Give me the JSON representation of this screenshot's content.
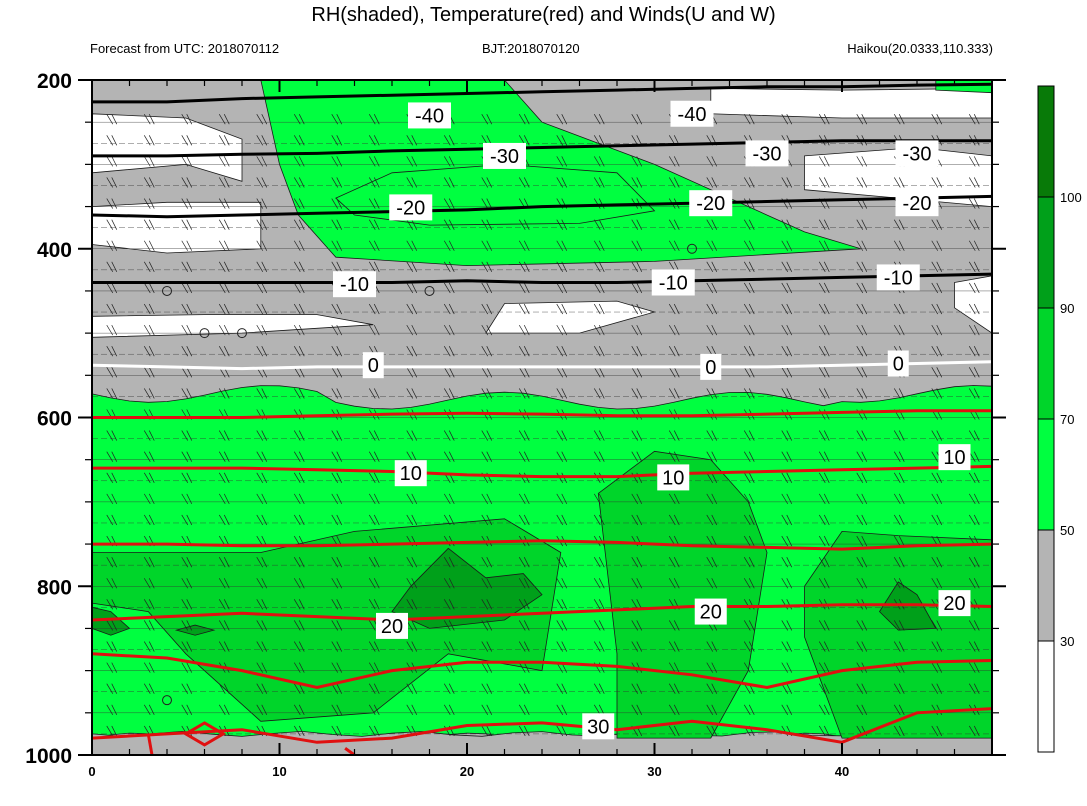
{
  "title": "RH(shaded), Temperature(red) and Winds(U and W)",
  "subtitle_left": "Forecast from UTC: 2018070112",
  "subtitle_center": "BJT:2018070120",
  "subtitle_right": "Haikou(20.0333,110.333)",
  "colors": {
    "rh_lt30": "#ffffff",
    "rh_30_50": "#b4b4b4",
    "rh_50_70": "#00ff40",
    "rh_70_90": "#00d52a",
    "rh_90_100": "#00a01a",
    "rh_gt100": "#087a08",
    "temperature_line": "#e01010",
    "zero_isotherm": "#ffffff",
    "negative_isotherm": "#000000",
    "contour_line": "#1a1a1a"
  },
  "chart_data": {
    "type": "heatmap",
    "x_ticks": [
      0,
      10,
      20,
      30,
      40
    ],
    "xlim": [
      0,
      48
    ],
    "y_ticks": [
      200,
      400,
      600,
      800,
      1000
    ],
    "ylim": [
      1000,
      200
    ],
    "y_reversed": true,
    "colorbar": {
      "levels": [
        30,
        50,
        70,
        90,
        100
      ],
      "level_labels": [
        "30",
        "50",
        "70",
        "90",
        "100"
      ],
      "colors": [
        "#ffffff",
        "#b4b4b4",
        "#00ff40",
        "#00d52a",
        "#00a01a",
        "#087a08"
      ]
    },
    "rh_layers": [
      {
        "p_top": 200,
        "p_bot": 515,
        "class": "30-50 with dry pockets <30"
      },
      {
        "p_top": 515,
        "p_bot": 575,
        "class": "30-50"
      },
      {
        "p_top": 575,
        "p_bot": 980,
        "class": "50-90 with pockets >90"
      },
      {
        "p_top": 980,
        "p_bot": 1000,
        "class": "30-50"
      }
    ],
    "temperature_contours": [
      {
        "level": -40,
        "label": "-40",
        "color": "black",
        "pressure": [
          226,
          226,
          222,
          220,
          218,
          216,
          214,
          212,
          210,
          208,
          208,
          206,
          205
        ]
      },
      {
        "level": -30,
        "label": "-30",
        "color": "black",
        "pressure": [
          290,
          290,
          288,
          287,
          284,
          282,
          280,
          278,
          276,
          274,
          272,
          272,
          272
        ]
      },
      {
        "level": -20,
        "label": "-20",
        "color": "black",
        "pressure": [
          360,
          362,
          360,
          358,
          356,
          354,
          350,
          348,
          346,
          344,
          342,
          340,
          338
        ]
      },
      {
        "level": -10,
        "label": "-10",
        "color": "black",
        "pressure": [
          440,
          440,
          440,
          440,
          440,
          438,
          440,
          440,
          438,
          436,
          434,
          432,
          430
        ]
      },
      {
        "level": 0,
        "label": "0",
        "color": "white",
        "pressure": [
          538,
          540,
          542,
          540,
          540,
          540,
          540,
          540,
          540,
          540,
          538,
          536,
          534
        ]
      },
      {
        "level": 5,
        "label": "",
        "color": "red",
        "pressure": [
          600,
          600,
          600,
          598,
          596,
          595,
          596,
          598,
          598,
          596,
          594,
          592,
          592
        ]
      },
      {
        "level": 10,
        "label": "10",
        "color": "red",
        "pressure": [
          660,
          660,
          660,
          662,
          664,
          668,
          670,
          670,
          666,
          664,
          662,
          660,
          658
        ]
      },
      {
        "level": 15,
        "label": "",
        "color": "red",
        "pressure": [
          750,
          750,
          752,
          752,
          750,
          748,
          746,
          748,
          752,
          754,
          756,
          752,
          750
        ]
      },
      {
        "level": 20,
        "label": "20",
        "color": "red",
        "pressure": [
          840,
          836,
          832,
          836,
          840,
          836,
          832,
          828,
          824,
          824,
          822,
          822,
          824
        ]
      },
      {
        "level": 25,
        "label": "",
        "color": "red",
        "pressure": [
          880,
          885,
          900,
          920,
          900,
          890,
          890,
          895,
          905,
          920,
          900,
          890,
          888
        ]
      },
      {
        "level": 30,
        "label": "30",
        "color": "red",
        "pressure": [
          980,
          975,
          970,
          985,
          980,
          965,
          962,
          970,
          960,
          970,
          985,
          950,
          945
        ]
      }
    ],
    "calm_markers": [
      {
        "t": 4,
        "p": 450
      },
      {
        "t": 6,
        "p": 500
      },
      {
        "t": 8,
        "p": 500
      },
      {
        "t": 18,
        "p": 450
      },
      {
        "t": 32,
        "p": 400
      },
      {
        "t": 4,
        "p": 935
      }
    ]
  }
}
